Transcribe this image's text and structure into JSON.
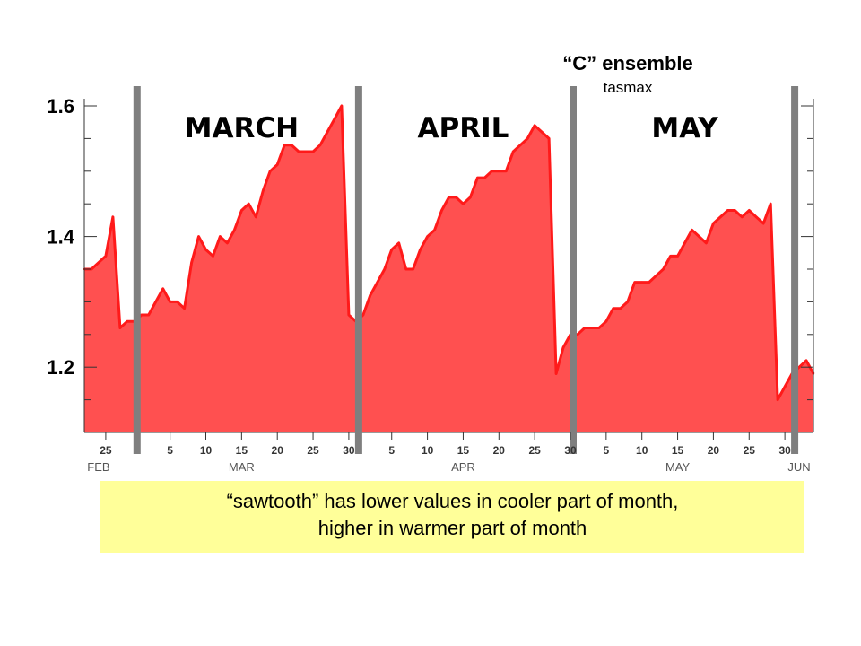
{
  "chart_data": {
    "type": "area",
    "title": "“C” ensemble",
    "subtitle": "tasmax",
    "ylim": [
      1.1,
      1.6
    ],
    "y_ticks": [
      1.2,
      1.4,
      1.6
    ],
    "y_tick_labels": [
      "1.2",
      "1.4",
      "1.6"
    ],
    "xlim": [
      "2000-02-22",
      "2000-06-03"
    ],
    "x_day_ticks": [
      {
        "date": "2000-02-25",
        "label": "25"
      },
      {
        "date": "2000-03-05",
        "label": "5"
      },
      {
        "date": "2000-03-10",
        "label": "10"
      },
      {
        "date": "2000-03-15",
        "label": "15"
      },
      {
        "date": "2000-03-20",
        "label": "20"
      },
      {
        "date": "2000-03-25",
        "label": "25"
      },
      {
        "date": "2000-03-30",
        "label": "30"
      },
      {
        "date": "2000-04-05",
        "label": "5"
      },
      {
        "date": "2000-04-10",
        "label": "10"
      },
      {
        "date": "2000-04-15",
        "label": "15"
      },
      {
        "date": "2000-04-20",
        "label": "20"
      },
      {
        "date": "2000-04-25",
        "label": "25"
      },
      {
        "date": "2000-04-30",
        "label": "30"
      },
      {
        "date": "2000-05-05",
        "label": "5"
      },
      {
        "date": "2000-05-10",
        "label": "10"
      },
      {
        "date": "2000-05-15",
        "label": "15"
      },
      {
        "date": "2000-05-20",
        "label": "20"
      },
      {
        "date": "2000-05-25",
        "label": "25"
      },
      {
        "date": "2000-05-30",
        "label": "30"
      }
    ],
    "x_month_labels": [
      {
        "date": "2000-02-24",
        "label": "FEB"
      },
      {
        "date": "2000-03-15",
        "label": "MAR"
      },
      {
        "date": "2000-04-15",
        "label": "APR"
      },
      {
        "date": "2000-05-15",
        "label": "MAY"
      },
      {
        "date": "2000-06-01",
        "label": "JUN"
      }
    ],
    "month_boundaries": [
      "2000-02-29",
      "2000-03-31",
      "2000-04-30",
      "2000-05-31"
    ],
    "month_annotations": [
      {
        "date": "2000-03-15",
        "label": "MARCH"
      },
      {
        "date": "2000-04-15",
        "label": "APRIL"
      },
      {
        "date": "2000-05-16",
        "label": "MAY"
      }
    ],
    "fill_color": "#ff5050",
    "line_color": "#ff1a1a",
    "boundary_color": "#7f7f7f",
    "series": [
      {
        "x": [
          "2000-02-22",
          "2000-02-23",
          "2000-02-24",
          "2000-02-25",
          "2000-02-26",
          "2000-02-27",
          "2000-02-28",
          "2000-02-29",
          "2000-03-01",
          "2000-03-02",
          "2000-03-03",
          "2000-03-04",
          "2000-03-05",
          "2000-03-06",
          "2000-03-07",
          "2000-03-08",
          "2000-03-09",
          "2000-03-10",
          "2000-03-11",
          "2000-03-12",
          "2000-03-13",
          "2000-03-14",
          "2000-03-15",
          "2000-03-16",
          "2000-03-17",
          "2000-03-18",
          "2000-03-19",
          "2000-03-20",
          "2000-03-21",
          "2000-03-22",
          "2000-03-23",
          "2000-03-24",
          "2000-03-25",
          "2000-03-26",
          "2000-03-27",
          "2000-03-28",
          "2000-03-29",
          "2000-03-30",
          "2000-03-31",
          "2000-04-01",
          "2000-04-02",
          "2000-04-03",
          "2000-04-04",
          "2000-04-05",
          "2000-04-06",
          "2000-04-07",
          "2000-04-08",
          "2000-04-09",
          "2000-04-10",
          "2000-04-11",
          "2000-04-12",
          "2000-04-13",
          "2000-04-14",
          "2000-04-15",
          "2000-04-16",
          "2000-04-17",
          "2000-04-18",
          "2000-04-19",
          "2000-04-20",
          "2000-04-21",
          "2000-04-22",
          "2000-04-23",
          "2000-04-24",
          "2000-04-25",
          "2000-04-26",
          "2000-04-27",
          "2000-04-28",
          "2000-04-29",
          "2000-04-30",
          "2000-05-01",
          "2000-05-02",
          "2000-05-03",
          "2000-05-04",
          "2000-05-05",
          "2000-05-06",
          "2000-05-07",
          "2000-05-08",
          "2000-05-09",
          "2000-05-10",
          "2000-05-11",
          "2000-05-12",
          "2000-05-13",
          "2000-05-14",
          "2000-05-15",
          "2000-05-16",
          "2000-05-17",
          "2000-05-18",
          "2000-05-19",
          "2000-05-20",
          "2000-05-21",
          "2000-05-22",
          "2000-05-23",
          "2000-05-24",
          "2000-05-25",
          "2000-05-26",
          "2000-05-27",
          "2000-05-28",
          "2000-05-29",
          "2000-05-30",
          "2000-05-31",
          "2000-06-01",
          "2000-06-02",
          "2000-06-03"
        ],
        "values": [
          1.35,
          1.35,
          1.36,
          1.37,
          1.43,
          1.26,
          1.27,
          1.27,
          1.28,
          1.28,
          1.3,
          1.32,
          1.3,
          1.3,
          1.29,
          1.36,
          1.4,
          1.38,
          1.37,
          1.4,
          1.39,
          1.41,
          1.44,
          1.45,
          1.43,
          1.47,
          1.5,
          1.51,
          1.54,
          1.54,
          1.53,
          1.53,
          1.53,
          1.54,
          1.56,
          1.58,
          1.6,
          1.28,
          1.27,
          1.28,
          1.31,
          1.33,
          1.35,
          1.38,
          1.39,
          1.35,
          1.35,
          1.38,
          1.4,
          1.41,
          1.44,
          1.46,
          1.46,
          1.45,
          1.46,
          1.49,
          1.49,
          1.5,
          1.5,
          1.5,
          1.53,
          1.54,
          1.55,
          1.57,
          1.56,
          1.55,
          1.19,
          1.23,
          1.25,
          1.25,
          1.26,
          1.26,
          1.26,
          1.27,
          1.29,
          1.29,
          1.3,
          1.33,
          1.33,
          1.33,
          1.34,
          1.35,
          1.37,
          1.37,
          1.39,
          1.41,
          1.4,
          1.39,
          1.42,
          1.43,
          1.44,
          1.44,
          1.43,
          1.44,
          1.43,
          1.42,
          1.45,
          1.15,
          1.17,
          1.19,
          1.2,
          1.21,
          1.19
        ]
      }
    ]
  },
  "note": {
    "line1": "“sawtooth” has lower values in cooler part of month,",
    "line2": "higher in warmer part of month",
    "background": "#ffff99"
  }
}
